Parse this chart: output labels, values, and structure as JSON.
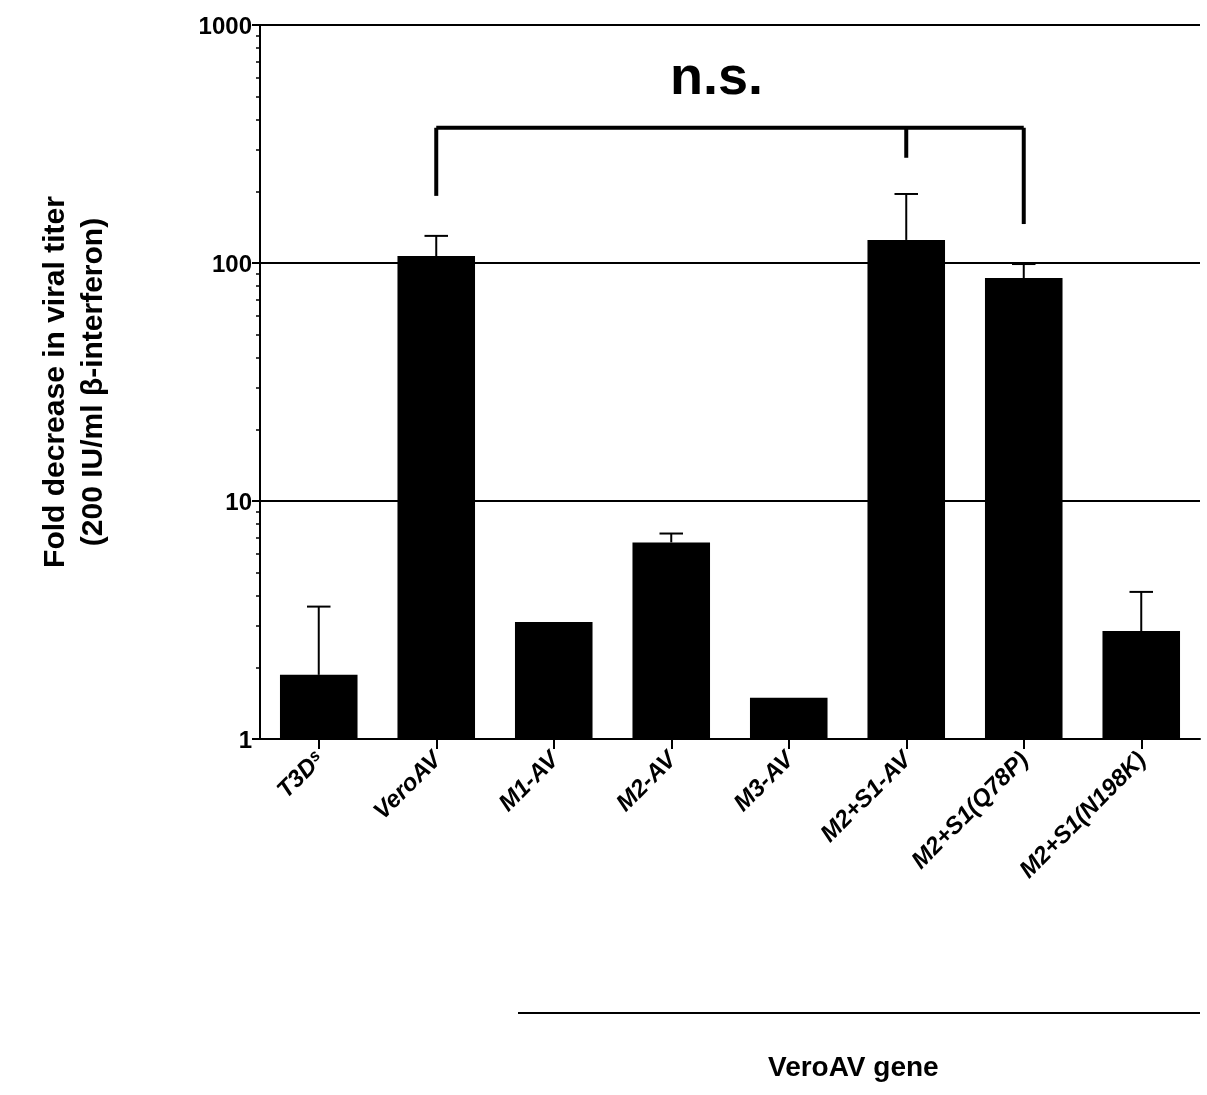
{
  "chart_data": {
    "type": "bar",
    "ylabel": "Fold decrease in viral titer\n(200 IU/ml β-interferon)",
    "categories": [
      "T3Dˢ",
      "VeroAV",
      "M1-AV",
      "M2-AV",
      "M3-AV",
      "M2+S1-AV",
      "M2+S1(Q78P)",
      "M2+S1(N198K)"
    ],
    "values": [
      1.86,
      107,
      3.1,
      6.7,
      1.49,
      125,
      86.5,
      2.84
    ],
    "errors": [
      [
        1.86,
        3.6
      ],
      [
        107,
        130
      ],
      null,
      [
        6.7,
        7.3
      ],
      null,
      [
        125,
        195
      ],
      [
        86.5,
        99
      ],
      [
        2.84,
        4.15
      ]
    ],
    "color": "#000000",
    "log": true,
    "ylim": [
      1,
      1000
    ],
    "yticks": [
      1,
      10,
      100,
      1000
    ],
    "grid": "y",
    "annotations": [
      "n.s.",
      "VeroAV gene"
    ]
  }
}
